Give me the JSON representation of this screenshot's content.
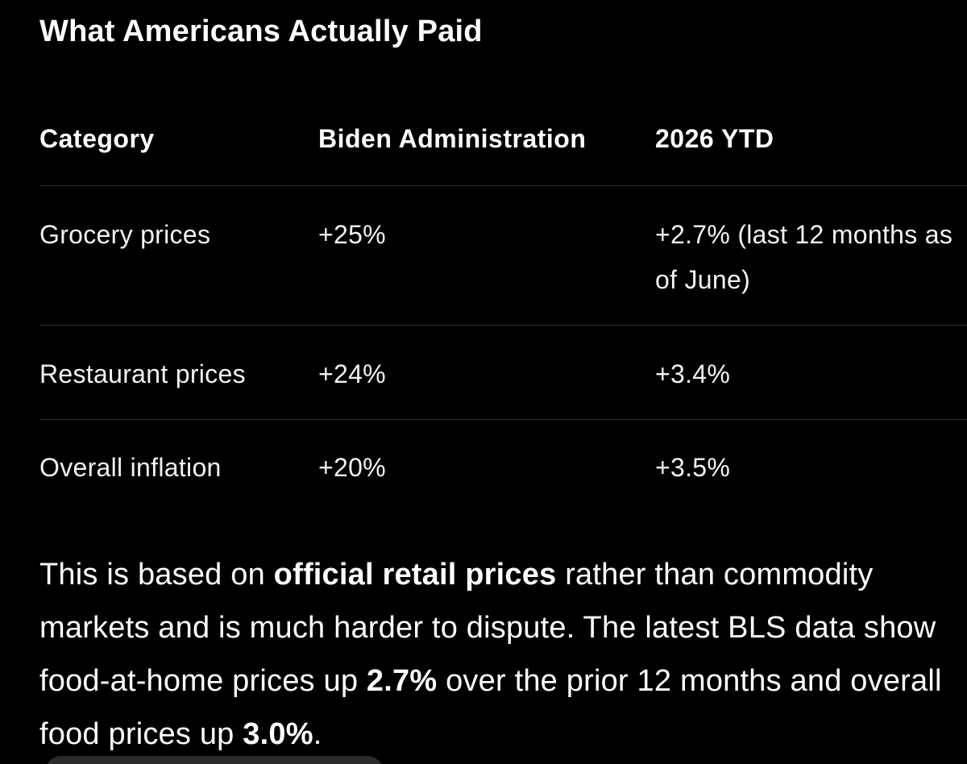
{
  "heading": "What Americans Actually Paid",
  "table": {
    "headers": [
      "Category",
      "Biden Administration",
      "2026 YTD"
    ],
    "rows": [
      {
        "category": "Grocery prices",
        "biden": "+25%",
        "ytd_line1": "+2.7% (last 12 months as",
        "ytd_line2": "of June)"
      },
      {
        "category": "Restaurant prices",
        "biden": "+24%",
        "ytd": "+3.4%"
      },
      {
        "category": "Overall inflation",
        "biden": "+20%",
        "ytd": "+3.5%"
      }
    ]
  },
  "paragraph": {
    "part1": "This is based on ",
    "bold1": "official retail prices",
    "part2": " rather than commodity markets and is much harder to dispute. The latest BLS data show food-at-home prices up ",
    "bold2": "2.7%",
    "part3": " over the prior 12 months and overall food prices up ",
    "bold3": "3.0%",
    "part4": "."
  },
  "colors": {
    "background": "#000000",
    "text": "#ffffff",
    "divider": "#2e2e2e"
  }
}
